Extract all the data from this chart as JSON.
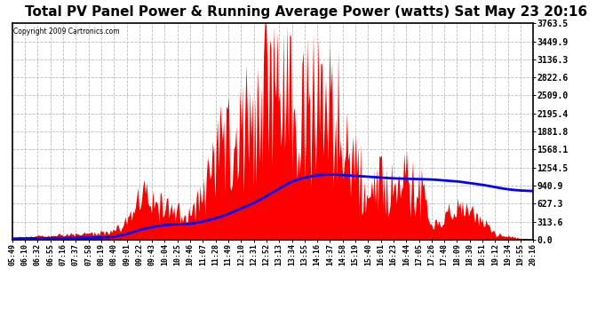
{
  "title": "Total PV Panel Power & Running Average Power (watts) Sat May 23 20:16",
  "copyright": "Copyright 2009 Cartronics.com",
  "yticks": [
    0.0,
    313.6,
    627.3,
    940.9,
    1254.5,
    1568.1,
    1881.8,
    2195.4,
    2509.0,
    2822.6,
    3136.3,
    3449.9,
    3763.5
  ],
  "ymax": 3763.5,
  "ymin": 0.0,
  "bg_color": "#ffffff",
  "plot_bg_color": "#ffffff",
  "grid_color": "#bbbbbb",
  "bar_color": "#ff0000",
  "line_color": "#0000ff",
  "title_fontsize": 11,
  "xtick_labels": [
    "05:49",
    "06:10",
    "06:32",
    "06:55",
    "07:16",
    "07:37",
    "07:58",
    "08:19",
    "08:40",
    "09:01",
    "09:22",
    "09:43",
    "10:04",
    "10:25",
    "10:46",
    "11:07",
    "11:28",
    "11:49",
    "12:10",
    "12:31",
    "12:52",
    "13:13",
    "13:34",
    "13:55",
    "14:16",
    "14:37",
    "14:58",
    "15:19",
    "15:40",
    "16:01",
    "16:23",
    "16:44",
    "17:05",
    "17:26",
    "17:48",
    "18:09",
    "18:30",
    "18:51",
    "19:12",
    "19:34",
    "19:55",
    "20:16"
  ],
  "pv_power": [
    30,
    50,
    60,
    70,
    80,
    90,
    100,
    120,
    150,
    280,
    900,
    700,
    550,
    480,
    420,
    900,
    2000,
    2200,
    2600,
    2800,
    3820,
    3550,
    3100,
    2950,
    3050,
    2900,
    2700,
    2200,
    500,
    1400,
    1200,
    1350,
    1100,
    200,
    350,
    700,
    500,
    300,
    100,
    60,
    25,
    5
  ],
  "running_avg": [
    20,
    22,
    24,
    26,
    28,
    32,
    36,
    40,
    55,
    100,
    170,
    220,
    255,
    270,
    280,
    320,
    375,
    450,
    545,
    640,
    760,
    890,
    1010,
    1080,
    1120,
    1135,
    1125,
    1110,
    1095,
    1082,
    1068,
    1063,
    1057,
    1048,
    1032,
    1015,
    985,
    955,
    915,
    878,
    857,
    847
  ],
  "spike_seed": 123
}
